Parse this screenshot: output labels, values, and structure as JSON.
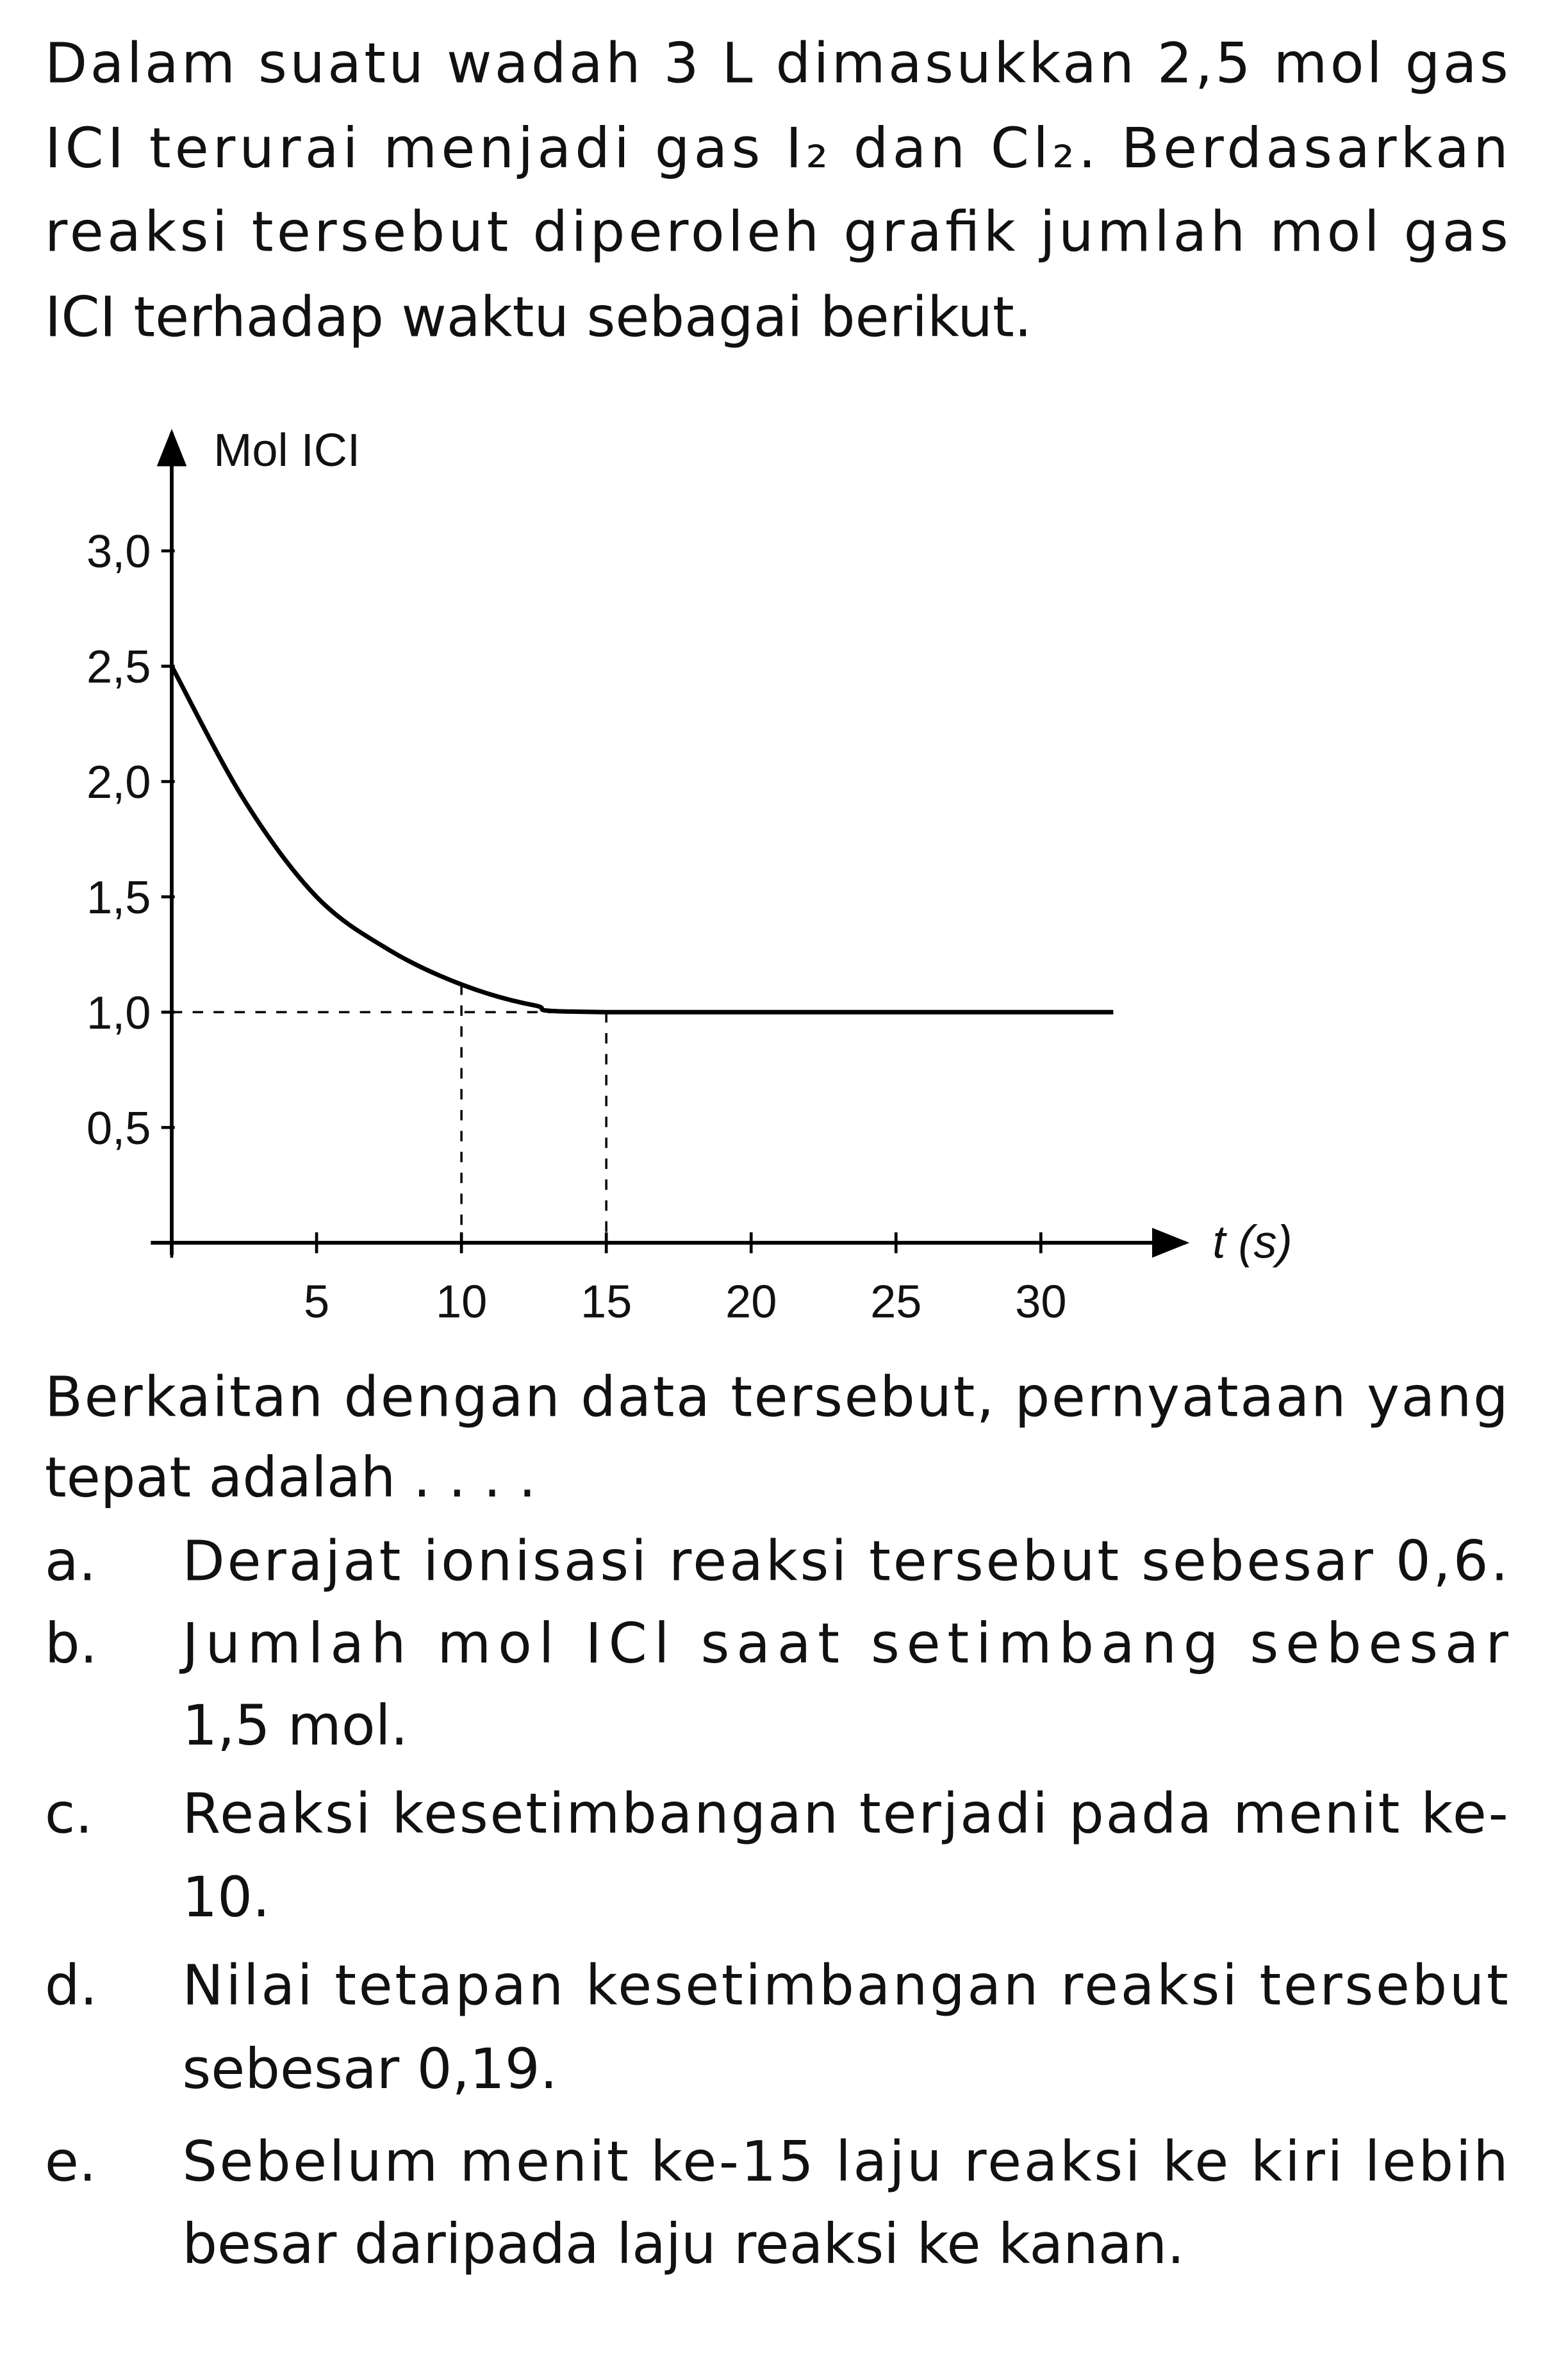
{
  "intro": [
    "Dalam suatu wadah 3 L dimasukkan 2,5 mol gas",
    "ICI terurai menjadi gas I₂ dan Cl₂. Berdasarkan",
    "reaksi tersebut diperoleh grafik jumlah mol gas",
    "ICI terhadap waktu sebagai berikut."
  ],
  "chart_data": {
    "type": "line",
    "y_label": "Mol ICI",
    "x_label": "t (s)",
    "x": [
      0,
      2.5,
      5,
      7.5,
      10,
      12.5,
      15,
      32.5
    ],
    "series": [
      {
        "color": "#000000",
        "values": [
          2.5,
          1.92,
          1.5,
          1.27,
          1.12,
          1.03,
          1.0,
          1.0
        ]
      }
    ],
    "xlim": [
      0,
      35
    ],
    "ylim": [
      0,
      3.5
    ],
    "xticks": [
      5,
      10,
      15,
      20,
      25,
      30
    ],
    "yticks": [
      {
        "value": 0.5,
        "label": "0,5"
      },
      {
        "value": 1.0,
        "label": "1,0"
      },
      {
        "value": 1.5,
        "label": "1,5"
      },
      {
        "value": 2.0,
        "label": "2,0"
      },
      {
        "value": 2.5,
        "label": "2,5"
      },
      {
        "value": 3.0,
        "label": "3,0"
      }
    ]
  },
  "question": [
    "Berkaitan dengan data tersebut, pernyataan yang",
    "tepat adalah . . . ."
  ],
  "options": [
    {
      "letter": "a.",
      "lines": [
        "Derajat ionisasi reaksi tersebut sebesar 0,6."
      ]
    },
    {
      "letter": "b.",
      "lines": [
        "Jumlah mol ICl saat setimbang sebesar",
        "1,5 mol."
      ]
    },
    {
      "letter": "c.",
      "lines": [
        "Reaksi kesetimbangan terjadi pada menit ke-",
        "10."
      ]
    },
    {
      "letter": "d.",
      "lines": [
        "Nilai tetapan kesetimbangan reaksi tersebut",
        "sebesar 0,19."
      ]
    },
    {
      "letter": "e.",
      "lines": [
        "Sebelum menit ke-15 laju reaksi ke kiri lebih",
        "besar daripada laju reaksi ke kanan."
      ]
    }
  ]
}
